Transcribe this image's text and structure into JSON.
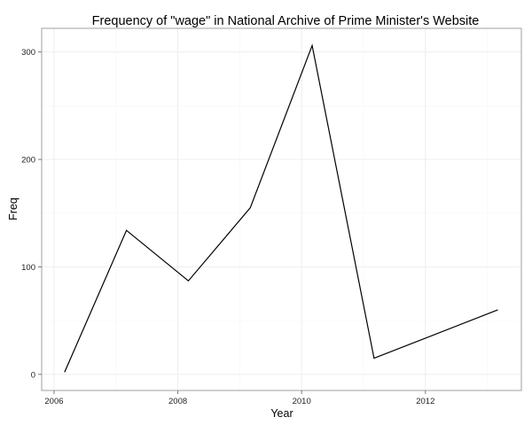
{
  "chart_data": {
    "type": "line",
    "title": "Frequency of \"wage\" in National Archive of Prime Minister's Website",
    "xlabel": "Year",
    "ylabel": "Freq",
    "x": [
      2006.17,
      2007.17,
      2008.17,
      2009.17,
      2010.17,
      2011.17,
      2013.17
    ],
    "series": [
      {
        "values": [
          2,
          134,
          87,
          155,
          306,
          15,
          60
        ]
      }
    ],
    "xlim": [
      2005.8,
      2013.55
    ],
    "ylim": [
      -15,
      322
    ],
    "xticks": [
      2006,
      2008,
      2010,
      2012
    ],
    "yticks": [
      0,
      100,
      200,
      300
    ],
    "xticks_minor": [
      2007,
      2009,
      2011,
      2013
    ],
    "yticks_minor": [
      50,
      150,
      250
    ],
    "grid": true,
    "colors": {
      "line": "#000000",
      "grid": "#ececec",
      "border": "#9f9f9f"
    }
  }
}
